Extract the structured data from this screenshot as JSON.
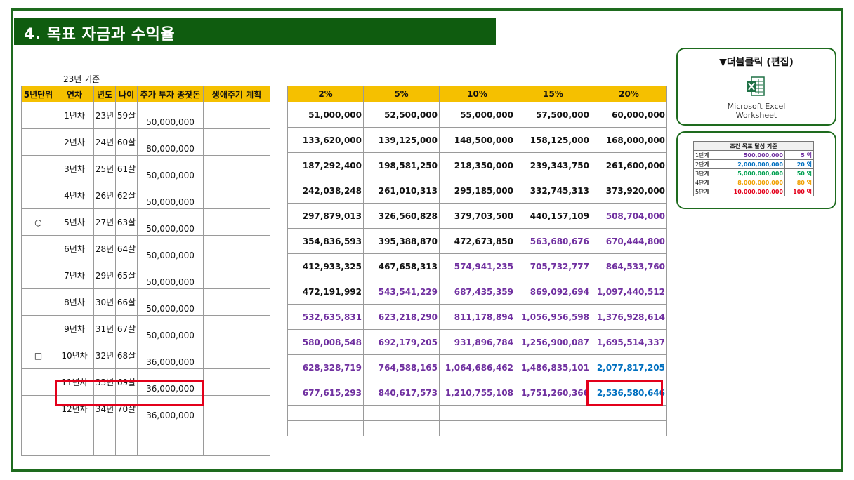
{
  "title": "4. 목표 자금과 수익율",
  "basis": "23년 기준",
  "left_headers": [
    "5년단위",
    "연차",
    "년도",
    "나이",
    "추가 투자 종잣돈",
    "생애주기 계획"
  ],
  "rate_headers": [
    "2%",
    "5%",
    "10%",
    "15%",
    "20%"
  ],
  "rows": [
    {
      "mark": "",
      "year_no": "1년차",
      "year": "23년",
      "age": "59살",
      "invest": "50,000,000",
      "plan": "",
      "v": [
        "51,000,000",
        "52,500,000",
        "55,000,000",
        "57,500,000",
        "60,000,000"
      ]
    },
    {
      "mark": "",
      "year_no": "2년차",
      "year": "24년",
      "age": "60살",
      "invest": "80,000,000",
      "plan": "",
      "v": [
        "133,620,000",
        "139,125,000",
        "148,500,000",
        "158,125,000",
        "168,000,000"
      ]
    },
    {
      "mark": "",
      "year_no": "3년차",
      "year": "25년",
      "age": "61살",
      "invest": "50,000,000",
      "plan": "",
      "v": [
        "187,292,400",
        "198,581,250",
        "218,350,000",
        "239,343,750",
        "261,600,000"
      ]
    },
    {
      "mark": "",
      "year_no": "4년차",
      "year": "26년",
      "age": "62살",
      "invest": "50,000,000",
      "plan": "",
      "v": [
        "242,038,248",
        "261,010,313",
        "295,185,000",
        "332,745,313",
        "373,920,000"
      ]
    },
    {
      "mark": "○",
      "year_no": "5년차",
      "year": "27년",
      "age": "63살",
      "invest": "50,000,000",
      "plan": "",
      "v": [
        "297,879,013",
        "326,560,828",
        "379,703,500",
        "440,157,109",
        "508,704,000"
      ]
    },
    {
      "mark": "",
      "year_no": "6년차",
      "year": "28년",
      "age": "64살",
      "invest": "50,000,000",
      "plan": "",
      "v": [
        "354,836,593",
        "395,388,870",
        "472,673,850",
        "563,680,676",
        "670,444,800"
      ]
    },
    {
      "mark": "",
      "year_no": "7년차",
      "year": "29년",
      "age": "65살",
      "invest": "50,000,000",
      "plan": "",
      "v": [
        "412,933,325",
        "467,658,313",
        "574,941,235",
        "705,732,777",
        "864,533,760"
      ]
    },
    {
      "mark": "",
      "year_no": "8년차",
      "year": "30년",
      "age": "66살",
      "invest": "50,000,000",
      "plan": "",
      "v": [
        "472,191,992",
        "543,541,229",
        "687,435,359",
        "869,092,694",
        "1,097,440,512"
      ]
    },
    {
      "mark": "",
      "year_no": "9년차",
      "year": "31년",
      "age": "67살",
      "invest": "50,000,000",
      "plan": "",
      "v": [
        "532,635,831",
        "623,218,290",
        "811,178,894",
        "1,056,956,598",
        "1,376,928,614"
      ]
    },
    {
      "mark": "□",
      "year_no": "10년차",
      "year": "32년",
      "age": "68살",
      "invest": "36,000,000",
      "plan": "",
      "v": [
        "580,008,548",
        "692,179,205",
        "931,896,784",
        "1,256,900,087",
        "1,695,514,337"
      ]
    },
    {
      "mark": "",
      "year_no": "11년차",
      "year": "33년",
      "age": "69살",
      "invest": "36,000,000",
      "plan": "",
      "v": [
        "628,328,719",
        "764,588,165",
        "1,064,686,462",
        "1,486,835,101",
        "2,077,817,205"
      ]
    },
    {
      "mark": "",
      "year_no": "12년차",
      "year": "34년",
      "age": "70살",
      "invest": "36,000,000",
      "plan": "",
      "v": [
        "677,615,293",
        "840,617,573",
        "1,210,755,108",
        "1,751,260,366",
        "2,536,580,646"
      ]
    }
  ],
  "value_colors": [
    [
      "b",
      "b",
      "b",
      "b",
      "b"
    ],
    [
      "b",
      "b",
      "b",
      "b",
      "b"
    ],
    [
      "b",
      "b",
      "b",
      "b",
      "b"
    ],
    [
      "b",
      "b",
      "b",
      "b",
      "b"
    ],
    [
      "b",
      "b",
      "b",
      "b",
      "p"
    ],
    [
      "b",
      "b",
      "b",
      "p",
      "p"
    ],
    [
      "b",
      "b",
      "p",
      "p",
      "p"
    ],
    [
      "b",
      "p",
      "p",
      "p",
      "p"
    ],
    [
      "p",
      "p",
      "p",
      "p",
      "p"
    ],
    [
      "p",
      "p",
      "p",
      "p",
      "p"
    ],
    [
      "p",
      "p",
      "p",
      "p",
      "u"
    ],
    [
      "p",
      "p",
      "p",
      "p",
      "u"
    ]
  ],
  "colors": {
    "title_bg": "#0f5c0f",
    "header_bg": "#f5c000",
    "purple": "#7030a0",
    "blue": "#0070c0",
    "highlight": "#e3001b"
  },
  "embed": {
    "label": "▼더블클릭 (편집)",
    "caption_line1": "Microsoft Excel",
    "caption_line2": "Worksheet",
    "icon": "excel-icon"
  },
  "goal": {
    "title": "조건 목표 달성 기준",
    "rows": [
      {
        "step": "1단계",
        "amount": "500,000,000",
        "eok": "5 억",
        "color": "#7030a0"
      },
      {
        "step": "2단계",
        "amount": "2,000,000,000",
        "eok": "20 억",
        "color": "#0070c0"
      },
      {
        "step": "3단계",
        "amount": "5,000,000,000",
        "eok": "50 억",
        "color": "#00a050"
      },
      {
        "step": "4단계",
        "amount": "8,000,000,000",
        "eok": "80 억",
        "color": "#f0a000"
      },
      {
        "step": "5단계",
        "amount": "10,000,000,000",
        "eok": "100 억",
        "color": "#e3001b"
      }
    ]
  }
}
